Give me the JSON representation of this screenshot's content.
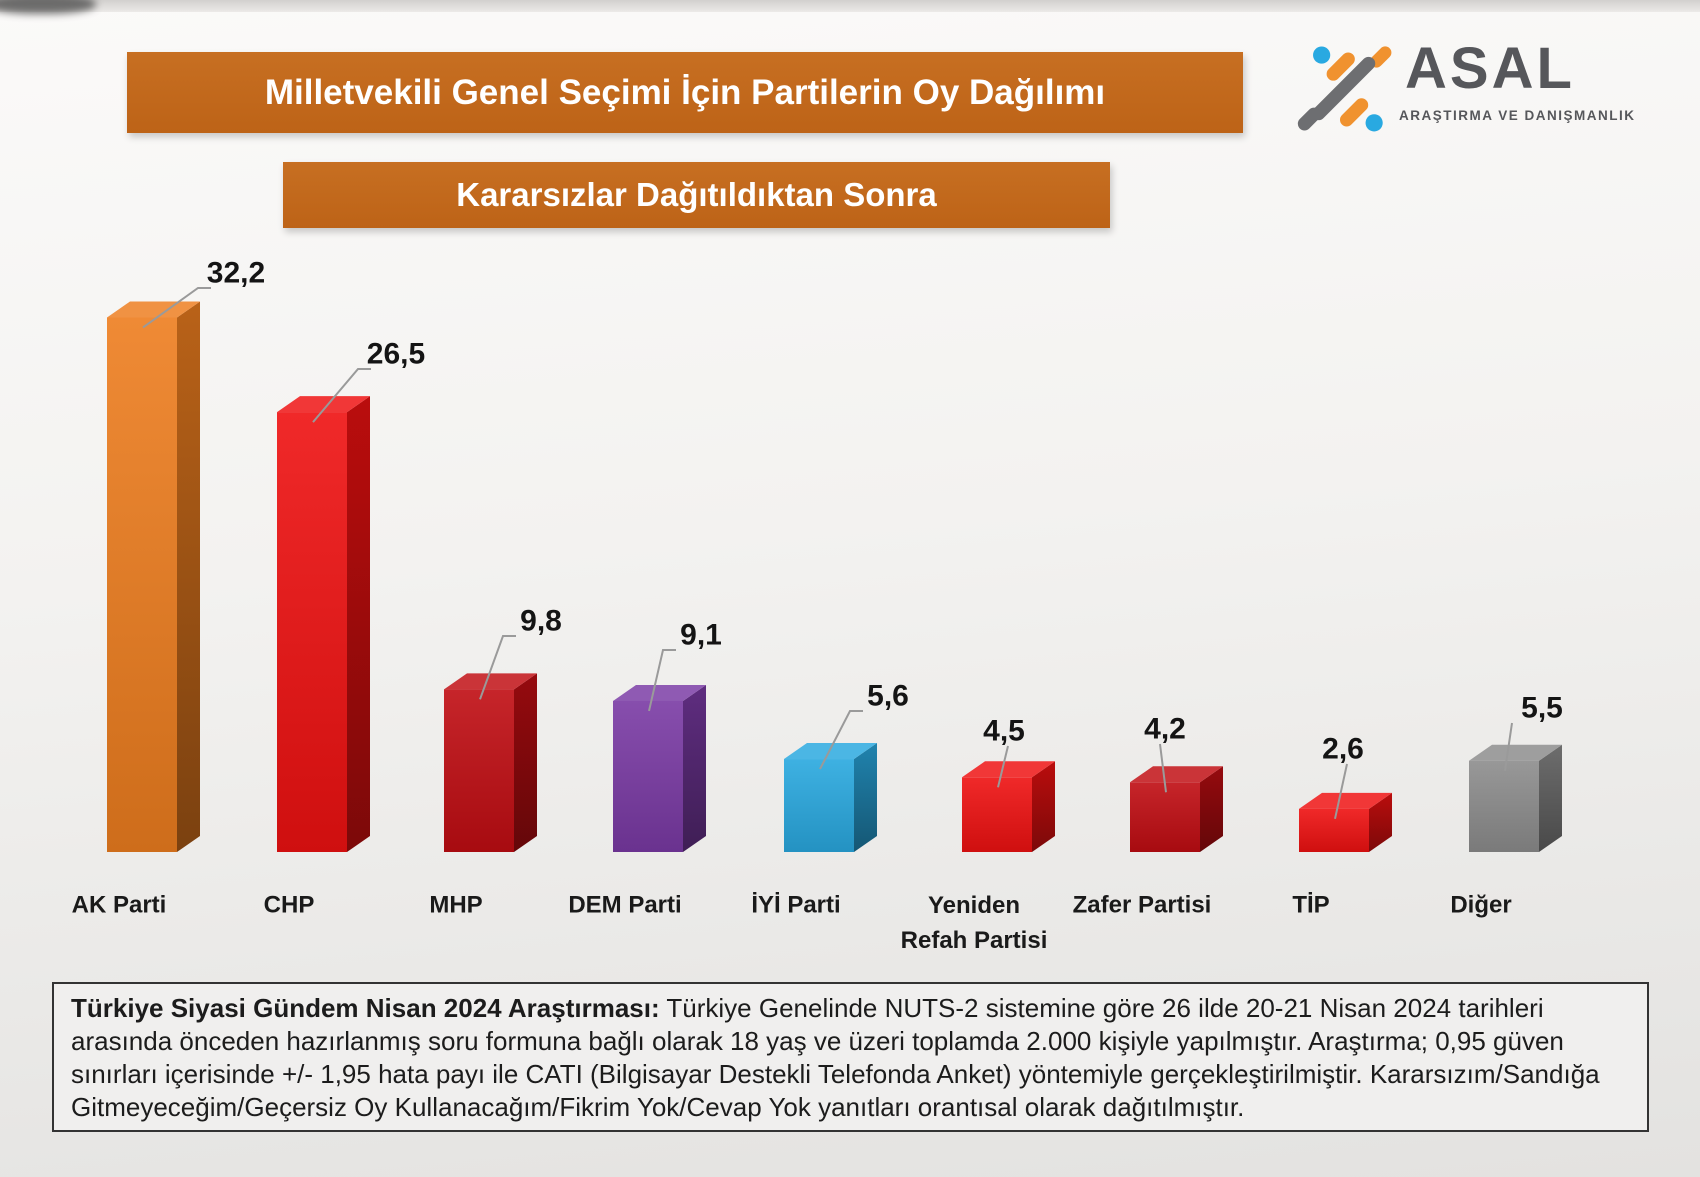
{
  "title_banner": "Milletvekili Genel Seçimi İçin Partilerin Oy Dağılımı",
  "subtitle_banner": "Kararsızlar Dağıtıldıktan Sonra",
  "logo": {
    "name": "ASAL",
    "tagline": "ARAŞTIRMA VE DANIŞMANLIK"
  },
  "chart_data": {
    "type": "bar",
    "style": "3d-column",
    "title": "Milletvekili Genel Seçimi İçin Partilerin Oy Dağılımı",
    "subtitle": "Kararsızlar Dağıtıldıktan Sonra",
    "categories": [
      "AK Parti",
      "CHP",
      "MHP",
      "DEM Parti",
      "İYİ Parti",
      "Yeniden Refah Partisi",
      "Zafer Partisi",
      "TİP",
      "Diğer"
    ],
    "values": [
      32.2,
      26.5,
      9.8,
      9.1,
      5.6,
      4.5,
      4.2,
      2.6,
      5.5
    ],
    "value_labels": [
      "32,2",
      "26,5",
      "9,8",
      "9,1",
      "5,6",
      "4,5",
      "4,2",
      "2,6",
      "5,5"
    ],
    "bar_colors": [
      "#ED7D1F",
      "#EE1111",
      "#C00D12",
      "#7A3AA4",
      "#29A8DF",
      "#EE1111",
      "#C00D12",
      "#EE1111",
      "#8C8C8C"
    ],
    "xlabel": "",
    "ylabel": "",
    "ylim": [
      0,
      35
    ],
    "grid": false,
    "legend": false
  },
  "footnote": {
    "lead": "Türkiye Siyasi Gündem Nisan 2024 Araştırması:",
    "body": " Türkiye Genelinde NUTS-2 sistemine göre 26 ilde 20-21 Nisan 2024 tarihleri arasında önceden hazırlanmış soru formuna bağlı olarak 18 yaş ve üzeri toplamda 2.000 kişiyle yapılmıştır. Araştırma; 0,95 güven sınırları içerisinde +/- 1,95 hata payı ile CATI (Bilgisayar Destekli Telefonda Anket) yöntemiyle gerçekleştirilmiştir. Kararsızım/Sandığa Gitmeyeceğim/Geçersiz Oy Kullanacağım/Fikrim Yok/Cevap Yok yanıtları orantısal olarak dağıtılmıştır."
  },
  "colors": {
    "banner": "#BD6317",
    "banner_text": "#FFFFFF",
    "leader_line": "#9A9A9A",
    "logo_gray": "#56575B",
    "logo_orange": "#F0922F",
    "logo_blue": "#29A9E1",
    "footnote_border": "#333333"
  }
}
